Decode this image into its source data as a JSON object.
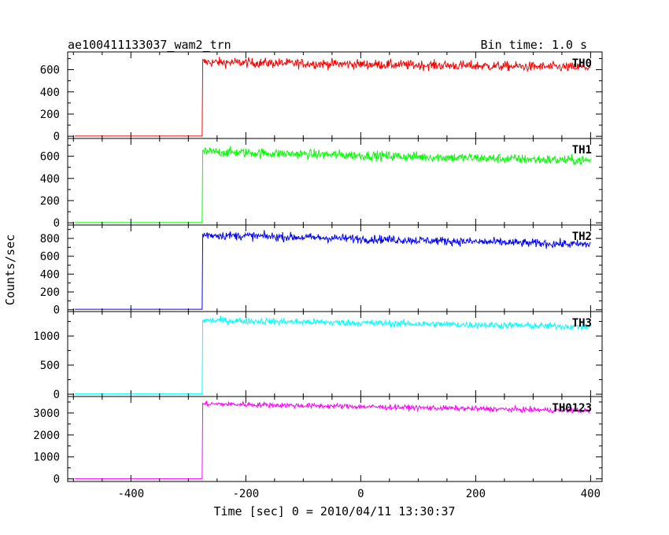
{
  "header": {
    "title": "ae100411133037_wam2_trn",
    "bin_time": "Bin time: 1.0 s"
  },
  "axes": {
    "xlabel": "Time [sec] 0 = 2010/04/11 13:30:37",
    "ylabel": "Counts/sec"
  },
  "chart_data": {
    "type": "line",
    "xlim": [
      -510,
      420
    ],
    "x_ticks": [
      -400,
      -200,
      0,
      200,
      400
    ],
    "x_step": 1.0,
    "onset": -275,
    "x_end": 400,
    "grid": false,
    "panels": [
      {
        "name": "TH0",
        "color": "#ff0000",
        "ylim": [
          -20,
          760
        ],
        "yticks": [
          0,
          200,
          400,
          600
        ],
        "pre_level": 2,
        "post_start": 668,
        "post_end": 620,
        "noise": 22
      },
      {
        "name": "TH1",
        "color": "#00ff00",
        "ylim": [
          -20,
          760
        ],
        "yticks": [
          0,
          200,
          400,
          600
        ],
        "pre_level": 2,
        "post_start": 640,
        "post_end": 560,
        "noise": 22
      },
      {
        "name": "TH2",
        "color": "#0000ff",
        "ylim": [
          -20,
          950
        ],
        "yticks": [
          0,
          200,
          400,
          600,
          800
        ],
        "pre_level": 5,
        "post_start": 840,
        "post_end": 730,
        "noise": 24
      },
      {
        "name": "TH3",
        "color": "#00ffff",
        "ylim": [
          -40,
          1420
        ],
        "yticks": [
          0,
          500,
          1000
        ],
        "pre_level": 5,
        "post_start": 1270,
        "post_end": 1160,
        "noise": 30
      },
      {
        "name": "TH0123",
        "color": "#ff00ff",
        "ylim": [
          -120,
          3750
        ],
        "yticks": [
          0,
          1000,
          2000,
          3000
        ],
        "pre_level": 10,
        "post_start": 3420,
        "post_end": 3100,
        "noise": 60
      }
    ]
  }
}
